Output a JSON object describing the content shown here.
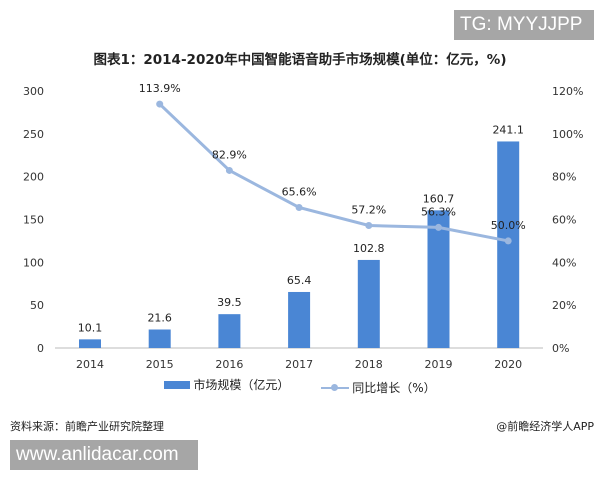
{
  "overlay_tag": "TG: MYYJJPP",
  "overlay_site": "www.anlidacar.com",
  "source": "资料来源：前瞻产业研究院整理",
  "credit": "@前瞻经济学人APP",
  "chart_data": {
    "type": "bar+line",
    "title": "图表1：2014-2020年中国智能语音助手市场规模(单位：亿元，%)",
    "categories": [
      "2014",
      "2015",
      "2016",
      "2017",
      "2018",
      "2019",
      "2020"
    ],
    "series": [
      {
        "name": "市场规模（亿元）",
        "type": "bar",
        "axis": "left",
        "color": "#4a86d4",
        "values": [
          10.1,
          21.6,
          39.5,
          65.4,
          102.8,
          160.7,
          241.1
        ],
        "labels": [
          "10.1",
          "21.6",
          "39.5",
          "65.4",
          "102.8",
          "160.7",
          "241.1"
        ]
      },
      {
        "name": "同比增长（%）",
        "type": "line",
        "axis": "right",
        "color": "#9bb7df",
        "x": [
          "2015",
          "2016",
          "2017",
          "2018",
          "2019",
          "2020"
        ],
        "values": [
          113.9,
          82.9,
          65.6,
          57.2,
          56.3,
          50.0
        ],
        "labels": [
          "113.9%",
          "82.9%",
          "65.6%",
          "57.2%",
          "56.3%",
          "50.0%"
        ]
      }
    ],
    "left_axis": {
      "ylim": [
        0,
        300
      ],
      "ticks": [
        "0",
        "50",
        "100",
        "150",
        "200",
        "250",
        "300"
      ]
    },
    "right_axis": {
      "ylim": [
        0,
        120
      ],
      "ticks": [
        "0%",
        "20%",
        "40%",
        "60%",
        "80%",
        "100%",
        "120%"
      ]
    },
    "grid": false,
    "legend": "bottom"
  }
}
